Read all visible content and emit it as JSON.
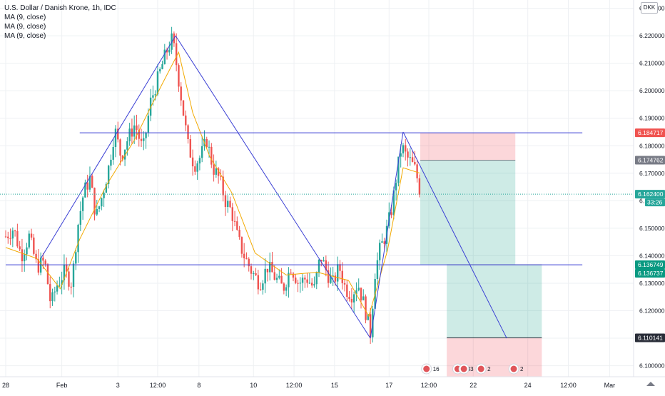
{
  "header": {
    "title": "U.S. Dollar / Danish Krone, 1h, IDC",
    "indicators": [
      "MA (9, close)",
      "MA (9, close)",
      "MA (9, close)"
    ],
    "currency": "DKK"
  },
  "chart_data": {
    "type": "candlestick",
    "ylim": [
      6.096,
      6.233
    ],
    "y_ticks": [
      6.23,
      6.22,
      6.21,
      6.2,
      6.19,
      6.18,
      6.17,
      6.16,
      6.15,
      6.14,
      6.13,
      6.12,
      6.11,
      6.1
    ],
    "y_tick_labels": [
      "6.230000",
      "6.220000",
      "6.210000",
      "6.200000",
      "6.190000",
      "6.180000",
      "6.170000",
      "6.160000",
      "6.150000",
      "6.140000",
      "6.130000",
      "6.120000",
      "6.110000",
      "6.100000"
    ],
    "x_tick_labels": [
      {
        "label": "28",
        "i": 0
      },
      {
        "label": "Feb",
        "i": 72
      },
      {
        "label": "3",
        "i": 144
      },
      {
        "label": "12:00",
        "i": 195
      },
      {
        "label": "8",
        "i": 248
      },
      {
        "label": "10",
        "i": 318
      },
      {
        "label": "12:00",
        "i": 370
      },
      {
        "label": "15",
        "i": 422
      },
      {
        "label": "17",
        "i": 492
      },
      {
        "label": "12:00",
        "i": 543
      },
      {
        "label": "22",
        "i": 600
      },
      {
        "label": "24",
        "i": 670
      },
      {
        "label": "12:00",
        "i": 722
      },
      {
        "label": "Mar",
        "i": 775
      }
    ],
    "price_labels": [
      {
        "text": "6.184717",
        "value": 6.184717,
        "color": "#f05350"
      },
      {
        "text": "6.174762",
        "value": 6.174762,
        "color": "#787b86"
      },
      {
        "text": "6.162400",
        "value": 6.1624,
        "color": "#26a69a",
        "sub": "33:26"
      },
      {
        "text": "6.136749",
        "value": 6.136749,
        "color": "#089981"
      },
      {
        "text": "6.136737",
        "value": 6.136737,
        "color": "#089981"
      },
      {
        "text": "6.110141",
        "value": 6.110141,
        "color": "#2a2e39"
      }
    ],
    "price_path": [
      {
        "i": 0,
        "v": 6.147
      },
      {
        "i": 10,
        "v": 6.15
      },
      {
        "i": 20,
        "v": 6.14
      },
      {
        "i": 30,
        "v": 6.147
      },
      {
        "i": 40,
        "v": 6.136
      },
      {
        "i": 50,
        "v": 6.138
      },
      {
        "i": 58,
        "v": 6.122
      },
      {
        "i": 65,
        "v": 6.129
      },
      {
        "i": 75,
        "v": 6.134
      },
      {
        "i": 85,
        "v": 6.13
      },
      {
        "i": 92,
        "v": 6.15
      },
      {
        "i": 100,
        "v": 6.163
      },
      {
        "i": 108,
        "v": 6.168
      },
      {
        "i": 116,
        "v": 6.154
      },
      {
        "i": 124,
        "v": 6.162
      },
      {
        "i": 132,
        "v": 6.172
      },
      {
        "i": 140,
        "v": 6.186
      },
      {
        "i": 148,
        "v": 6.176
      },
      {
        "i": 156,
        "v": 6.182
      },
      {
        "i": 166,
        "v": 6.188
      },
      {
        "i": 176,
        "v": 6.178
      },
      {
        "i": 186,
        "v": 6.196
      },
      {
        "i": 196,
        "v": 6.205
      },
      {
        "i": 206,
        "v": 6.214
      },
      {
        "i": 214,
        "v": 6.219
      },
      {
        "i": 220,
        "v": 6.208
      },
      {
        "i": 228,
        "v": 6.192
      },
      {
        "i": 234,
        "v": 6.18
      },
      {
        "i": 242,
        "v": 6.173
      },
      {
        "i": 250,
        "v": 6.176
      },
      {
        "i": 258,
        "v": 6.182
      },
      {
        "i": 266,
        "v": 6.172
      },
      {
        "i": 274,
        "v": 6.168
      },
      {
        "i": 282,
        "v": 6.16
      },
      {
        "i": 290,
        "v": 6.156
      },
      {
        "i": 298,
        "v": 6.146
      },
      {
        "i": 306,
        "v": 6.14
      },
      {
        "i": 316,
        "v": 6.134
      },
      {
        "i": 326,
        "v": 6.13
      },
      {
        "i": 336,
        "v": 6.136
      },
      {
        "i": 346,
        "v": 6.132
      },
      {
        "i": 356,
        "v": 6.128
      },
      {
        "i": 366,
        "v": 6.136
      },
      {
        "i": 376,
        "v": 6.13
      },
      {
        "i": 386,
        "v": 6.132
      },
      {
        "i": 396,
        "v": 6.128
      },
      {
        "i": 404,
        "v": 6.14
      },
      {
        "i": 412,
        "v": 6.134
      },
      {
        "i": 420,
        "v": 6.13
      },
      {
        "i": 428,
        "v": 6.136
      },
      {
        "i": 436,
        "v": 6.128
      },
      {
        "i": 444,
        "v": 6.126
      },
      {
        "i": 452,
        "v": 6.13
      },
      {
        "i": 460,
        "v": 6.122
      },
      {
        "i": 468,
        "v": 6.112
      },
      {
        "i": 474,
        "v": 6.134
      },
      {
        "i": 480,
        "v": 6.142
      },
      {
        "i": 488,
        "v": 6.148
      },
      {
        "i": 496,
        "v": 6.158
      },
      {
        "i": 502,
        "v": 6.17
      },
      {
        "i": 508,
        "v": 6.18
      },
      {
        "i": 514,
        "v": 6.176
      },
      {
        "i": 520,
        "v": 6.174
      },
      {
        "i": 526,
        "v": 6.171
      },
      {
        "i": 532,
        "v": 6.163
      }
    ],
    "ma_path": [
      {
        "i": 0,
        "v": 6.143
      },
      {
        "i": 40,
        "v": 6.139
      },
      {
        "i": 70,
        "v": 6.128
      },
      {
        "i": 95,
        "v": 6.146
      },
      {
        "i": 130,
        "v": 6.166
      },
      {
        "i": 165,
        "v": 6.182
      },
      {
        "i": 200,
        "v": 6.202
      },
      {
        "i": 222,
        "v": 6.214
      },
      {
        "i": 240,
        "v": 6.192
      },
      {
        "i": 262,
        "v": 6.176
      },
      {
        "i": 290,
        "v": 6.163
      },
      {
        "i": 320,
        "v": 6.141
      },
      {
        "i": 360,
        "v": 6.133
      },
      {
        "i": 400,
        "v": 6.134
      },
      {
        "i": 440,
        "v": 6.131
      },
      {
        "i": 466,
        "v": 6.118
      },
      {
        "i": 490,
        "v": 6.142
      },
      {
        "i": 510,
        "v": 6.172
      },
      {
        "i": 532,
        "v": 6.17
      }
    ],
    "trendlines": [
      {
        "name": "rise-line-1",
        "from": {
          "i": 45,
          "v": 6.139
        },
        "to": {
          "i": 218,
          "v": 6.22
        }
      },
      {
        "name": "fall-line-1",
        "from": {
          "i": 218,
          "v": 6.22
        },
        "to": {
          "i": 468,
          "v": 6.11
        }
      },
      {
        "name": "rise-line-2",
        "from": {
          "i": 468,
          "v": 6.11
        },
        "to": {
          "i": 510,
          "v": 6.185
        }
      },
      {
        "name": "fall-line-2",
        "from": {
          "i": 510,
          "v": 6.185
        },
        "to": {
          "i": 643,
          "v": 6.11
        }
      }
    ],
    "horizontal_levels": [
      {
        "name": "resistance-level",
        "value": 6.1847,
        "from_i": 95,
        "to_i": 740
      },
      {
        "name": "support-level",
        "value": 6.1367,
        "from_i": 0,
        "to_i": 740
      }
    ],
    "positions": [
      {
        "name": "short-position-1",
        "entry": 6.174762,
        "stop": 6.184717,
        "target": 6.136749,
        "from_i": 532,
        "to_i": 654
      },
      {
        "name": "short-position-2",
        "entry": 6.136737,
        "stop": 6.096,
        "target": 6.110141,
        "from_i": 566,
        "to_i": 688
      }
    ],
    "events": [
      {
        "label": "16",
        "i": 540
      },
      {
        "label": "24",
        "i": 580
      },
      {
        "label": "3",
        "i": 588
      },
      {
        "label": "2",
        "i": 610
      },
      {
        "label": "2",
        "i": 652
      }
    ]
  }
}
